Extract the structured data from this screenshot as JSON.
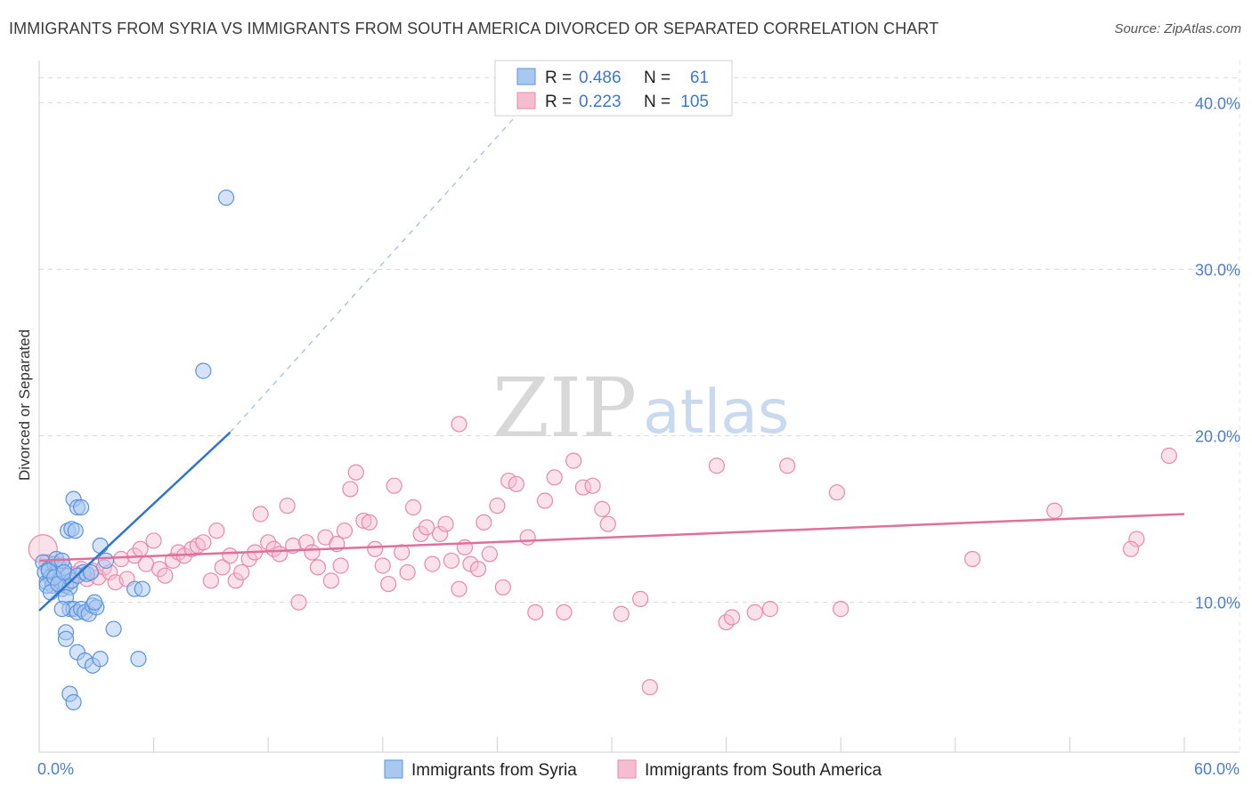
{
  "title": "IMMIGRANTS FROM SYRIA VS IMMIGRANTS FROM SOUTH AMERICA DIVORCED OR SEPARATED CORRELATION CHART",
  "source": "Source: ZipAtlas.com",
  "watermark": {
    "zip": "ZIP",
    "atlas": "atlas"
  },
  "colors": {
    "syria_fill": "#a9c8f0",
    "syria_stroke": "#5b93dc",
    "syria_line": "#2f74d0",
    "sa_fill": "#f6bdd0",
    "sa_stroke": "#e88aa8",
    "sa_line": "#e0709a",
    "grid": "#d9d9d9",
    "axis_text": "#4a7fc8"
  },
  "legend": {
    "rows": [
      {
        "r_label": "R = ",
        "r_value": "0.486",
        "n_label": "N = ",
        "n_value": "61"
      },
      {
        "r_label": "R = ",
        "r_value": "0.223",
        "n_label": "N = ",
        "n_value": "105"
      }
    ]
  },
  "chart_data": {
    "type": "scatter",
    "title": "IMMIGRANTS FROM SYRIA VS IMMIGRANTS FROM SOUTH AMERICA DIVORCED OR SEPARATED CORRELATION CHART",
    "xlabel": "",
    "ylabel": "Divorced or Separated",
    "xlim": [
      0,
      60
    ],
    "ylim": [
      1,
      42
    ],
    "x_tick_labels": [
      "0.0%",
      "60.0%"
    ],
    "y_ticks": [
      10,
      20,
      30,
      40
    ],
    "y_tick_labels": [
      "10.0%",
      "20.0%",
      "30.0%",
      "40.0%"
    ],
    "legend_position": "bottom-center",
    "series": [
      {
        "name": "Immigrants from Syria",
        "r": 0.486,
        "n": 61,
        "trend": {
          "x": [
            0,
            10
          ],
          "y": [
            9.5,
            20.2
          ],
          "dashed_extension_to": [
            26,
            40.5
          ]
        },
        "points": [
          [
            0.2,
            12.4
          ],
          [
            0.3,
            11.8
          ],
          [
            0.4,
            11.2
          ],
          [
            0.5,
            12.0
          ],
          [
            0.6,
            11.5
          ],
          [
            0.7,
            11.0
          ],
          [
            0.8,
            12.3
          ],
          [
            0.9,
            11.7
          ],
          [
            1.0,
            12.2
          ],
          [
            1.1,
            11.4
          ],
          [
            1.2,
            10.8
          ],
          [
            1.3,
            12.1
          ],
          [
            1.4,
            11.0
          ],
          [
            1.5,
            11.6
          ],
          [
            1.6,
            10.9
          ],
          [
            1.7,
            11.3
          ],
          [
            0.4,
            11.0
          ],
          [
            0.6,
            10.6
          ],
          [
            0.9,
            12.6
          ],
          [
            1.2,
            12.5
          ],
          [
            0.5,
            11.9
          ],
          [
            0.8,
            11.5
          ],
          [
            1.0,
            11.1
          ],
          [
            1.3,
            11.8
          ],
          [
            1.5,
            14.3
          ],
          [
            1.7,
            14.4
          ],
          [
            1.8,
            16.2
          ],
          [
            2.0,
            15.7
          ],
          [
            2.2,
            15.7
          ],
          [
            1.9,
            14.3
          ],
          [
            3.2,
            13.4
          ],
          [
            3.5,
            12.5
          ],
          [
            2.3,
            11.8
          ],
          [
            2.0,
            11.6
          ],
          [
            2.5,
            11.7
          ],
          [
            2.7,
            11.8
          ],
          [
            1.4,
            10.3
          ],
          [
            1.6,
            9.6
          ],
          [
            1.8,
            9.6
          ],
          [
            2.0,
            9.4
          ],
          [
            2.2,
            9.6
          ],
          [
            2.4,
            9.4
          ],
          [
            2.6,
            9.3
          ],
          [
            1.2,
            9.6
          ],
          [
            2.8,
            9.8
          ],
          [
            3.0,
            9.7
          ],
          [
            2.9,
            10.0
          ],
          [
            1.4,
            8.2
          ],
          [
            1.4,
            7.8
          ],
          [
            2.0,
            7.0
          ],
          [
            2.4,
            6.5
          ],
          [
            2.8,
            6.2
          ],
          [
            3.2,
            6.6
          ],
          [
            3.9,
            8.4
          ],
          [
            5.2,
            6.6
          ],
          [
            5.0,
            10.8
          ],
          [
            5.4,
            10.8
          ],
          [
            1.6,
            4.5
          ],
          [
            1.8,
            4.0
          ],
          [
            8.6,
            23.9
          ],
          [
            9.8,
            34.3
          ]
        ]
      },
      {
        "name": "Immigrants from South America",
        "r": 0.223,
        "n": 105,
        "trend": {
          "x": [
            0,
            60
          ],
          "y": [
            12.5,
            15.3
          ]
        },
        "points": [
          [
            0.2,
            13.2
          ],
          [
            0.4,
            12.4
          ],
          [
            0.7,
            11.8
          ],
          [
            1.0,
            12.3
          ],
          [
            1.3,
            11.6
          ],
          [
            1.6,
            11.2
          ],
          [
            1.9,
            11.7
          ],
          [
            2.2,
            12.0
          ],
          [
            2.5,
            11.4
          ],
          [
            2.8,
            11.9
          ],
          [
            3.1,
            11.5
          ],
          [
            3.4,
            12.1
          ],
          [
            3.7,
            11.8
          ],
          [
            4.0,
            11.2
          ],
          [
            4.3,
            12.6
          ],
          [
            4.6,
            11.4
          ],
          [
            5.0,
            12.8
          ],
          [
            5.3,
            13.2
          ],
          [
            5.6,
            12.3
          ],
          [
            6.0,
            13.7
          ],
          [
            6.3,
            12.0
          ],
          [
            6.6,
            11.6
          ],
          [
            7.0,
            12.5
          ],
          [
            7.3,
            13.0
          ],
          [
            7.6,
            12.8
          ],
          [
            8.0,
            13.2
          ],
          [
            8.3,
            13.4
          ],
          [
            8.6,
            13.6
          ],
          [
            9.0,
            11.3
          ],
          [
            9.3,
            14.3
          ],
          [
            9.6,
            12.1
          ],
          [
            10.0,
            12.8
          ],
          [
            10.3,
            11.3
          ],
          [
            10.6,
            11.8
          ],
          [
            11.0,
            12.6
          ],
          [
            11.3,
            13.0
          ],
          [
            11.6,
            15.3
          ],
          [
            12.0,
            13.6
          ],
          [
            12.3,
            13.2
          ],
          [
            12.6,
            12.9
          ],
          [
            13.0,
            15.8
          ],
          [
            13.3,
            13.4
          ],
          [
            13.6,
            10.0
          ],
          [
            14.0,
            13.6
          ],
          [
            14.3,
            13.0
          ],
          [
            14.6,
            12.1
          ],
          [
            15.0,
            13.9
          ],
          [
            15.3,
            11.3
          ],
          [
            15.6,
            13.5
          ],
          [
            16.0,
            14.3
          ],
          [
            16.3,
            16.8
          ],
          [
            16.6,
            17.8
          ],
          [
            17.0,
            14.9
          ],
          [
            17.3,
            14.8
          ],
          [
            17.6,
            13.2
          ],
          [
            18.0,
            12.2
          ],
          [
            18.3,
            11.1
          ],
          [
            18.6,
            17.0
          ],
          [
            19.0,
            13.0
          ],
          [
            19.3,
            11.8
          ],
          [
            19.6,
            15.7
          ],
          [
            20.0,
            14.1
          ],
          [
            20.3,
            14.5
          ],
          [
            20.6,
            12.3
          ],
          [
            21.0,
            14.1
          ],
          [
            21.3,
            14.7
          ],
          [
            21.6,
            12.5
          ],
          [
            22.0,
            10.8
          ],
          [
            22.3,
            13.3
          ],
          [
            22.6,
            12.3
          ],
          [
            23.0,
            12.0
          ],
          [
            23.3,
            14.8
          ],
          [
            23.6,
            12.9
          ],
          [
            24.0,
            15.8
          ],
          [
            24.3,
            10.9
          ],
          [
            24.6,
            17.3
          ],
          [
            25.0,
            17.1
          ],
          [
            25.6,
            13.9
          ],
          [
            26.0,
            9.4
          ],
          [
            26.5,
            16.1
          ],
          [
            27.0,
            17.5
          ],
          [
            27.5,
            9.4
          ],
          [
            28.0,
            18.5
          ],
          [
            28.5,
            16.9
          ],
          [
            29.0,
            17.0
          ],
          [
            29.5,
            15.6
          ],
          [
            29.8,
            14.7
          ],
          [
            30.5,
            9.3
          ],
          [
            31.5,
            10.2
          ],
          [
            32.0,
            4.9
          ],
          [
            35.5,
            18.2
          ],
          [
            36.0,
            8.8
          ],
          [
            36.3,
            9.1
          ],
          [
            37.5,
            9.4
          ],
          [
            38.3,
            9.6
          ],
          [
            39.2,
            18.2
          ],
          [
            22.0,
            20.7
          ],
          [
            41.8,
            16.6
          ],
          [
            42.0,
            9.6
          ],
          [
            48.9,
            12.6
          ],
          [
            59.2,
            18.8
          ],
          [
            57.5,
            13.8
          ],
          [
            57.2,
            13.2
          ],
          [
            53.2,
            15.5
          ],
          [
            15.8,
            12.2
          ]
        ]
      }
    ]
  },
  "bottom_legend": [
    {
      "label": "Immigrants from Syria"
    },
    {
      "label": "Immigrants from South America"
    }
  ]
}
